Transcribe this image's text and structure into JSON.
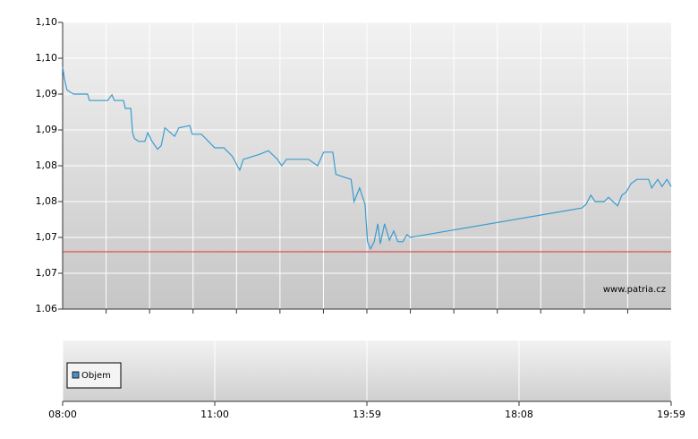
{
  "chart_data": [
    {
      "type": "line",
      "x": [
        0,
        0.3,
        0.7,
        1.2,
        1.8,
        4.1,
        4.4,
        7.4,
        8.1,
        8.5,
        10.0,
        10.3,
        11.2,
        11.5,
        11.8,
        12.5,
        13.5,
        14.0,
        14.7,
        15.6,
        16.2,
        16.8,
        18.4,
        19.1,
        20.9,
        21.3,
        22.8,
        23.5,
        24.3,
        25.0,
        26.5,
        27.9,
        28.7,
        29.1,
        29.7,
        32.4,
        33.8,
        35.3,
        36.0,
        36.8,
        39.0,
        40.4,
        41.9,
        42.9,
        44.4,
        44.9,
        46.3,
        47.4,
        47.9,
        48.8,
        49.7,
        50.1,
        50.6,
        51.2,
        51.8,
        52.2,
        52.9,
        53.7,
        54.4,
        55.1,
        55.9,
        56.6,
        57.1,
        85.3,
        86.0,
        86.8,
        87.5,
        89.0,
        89.7,
        91.2,
        91.9,
        92.6,
        93.4,
        94.4,
        96.3,
        96.8,
        97.8,
        98.5,
        99.3,
        100
      ],
      "values": [
        1.0938,
        1.0921,
        1.0906,
        1.0903,
        1.09,
        1.09,
        1.0891,
        1.0891,
        1.0899,
        1.0891,
        1.0891,
        1.088,
        1.088,
        1.0846,
        1.0838,
        1.0834,
        1.0834,
        1.0846,
        1.0834,
        1.0823,
        1.0828,
        1.0853,
        1.0841,
        1.0853,
        1.0856,
        1.0844,
        1.0844,
        1.0838,
        1.0831,
        1.0825,
        1.0825,
        1.0813,
        1.08,
        1.0794,
        1.0809,
        1.0816,
        1.0821,
        1.0809,
        1.08,
        1.0809,
        1.0809,
        1.0809,
        1.08,
        1.0819,
        1.0819,
        1.0788,
        1.0784,
        1.0781,
        1.075,
        1.0769,
        1.0746,
        1.0694,
        1.0684,
        1.0694,
        1.0719,
        1.0691,
        1.0719,
        1.0696,
        1.0709,
        1.0694,
        1.0694,
        1.0704,
        1.07,
        1.0741,
        1.0746,
        1.0759,
        1.075,
        1.075,
        1.0756,
        1.0744,
        1.0759,
        1.0763,
        1.0775,
        1.0781,
        1.0781,
        1.0769,
        1.0781,
        1.0771,
        1.0781,
        1.0771
      ],
      "color": "#3a9cd0",
      "xlim": [
        0,
        100
      ],
      "ylim": [
        1.06,
        1.1
      ],
      "yticks": [
        {
          "value": 1.06,
          "label": "1.06"
        },
        {
          "value": 1.065,
          "label": "1,07"
        },
        {
          "value": 1.07,
          "label": "1,07"
        },
        {
          "value": 1.075,
          "label": "1,08"
        },
        {
          "value": 1.08,
          "label": "1,08"
        },
        {
          "value": 1.085,
          "label": "1,09"
        },
        {
          "value": 1.09,
          "label": "1,09"
        },
        {
          "value": 1.095,
          "label": "1,10"
        },
        {
          "value": 1.1,
          "label": "1,10"
        }
      ],
      "reference_line": {
        "value": 1.068,
        "color": "#e03030"
      },
      "grid": true,
      "annotation": "www.patria.cz"
    },
    {
      "type": "bar",
      "series": [
        {
          "name": "Objem",
          "color": "#4a90c8",
          "values": []
        }
      ],
      "xlim": [
        0,
        100
      ],
      "xticks": [
        {
          "value": 0,
          "label": "08:00"
        },
        {
          "value": 25,
          "label": "11:00"
        },
        {
          "value": 50,
          "label": "13:59"
        },
        {
          "value": 75,
          "label": "18:08"
        },
        {
          "value": 100,
          "label": "19:59"
        }
      ],
      "legend": "top-left",
      "grid": true
    }
  ]
}
